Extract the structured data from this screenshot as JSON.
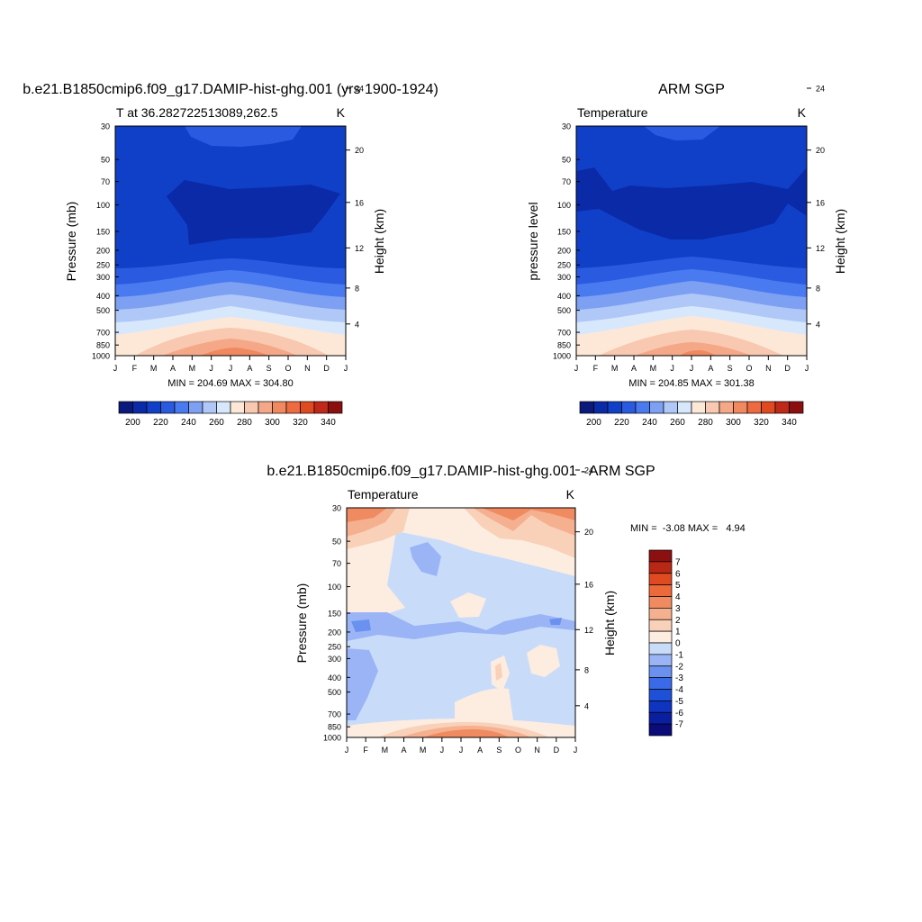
{
  "figure": {
    "months": [
      "J",
      "F",
      "M",
      "A",
      "M",
      "J",
      "J",
      "A",
      "S",
      "O",
      "N",
      "D",
      "J"
    ],
    "pressure_ticks": [
      30,
      50,
      70,
      100,
      150,
      200,
      250,
      300,
      400,
      500,
      700,
      850,
      1000
    ],
    "height_ticks": [
      4,
      8,
      12,
      16,
      20,
      24
    ]
  },
  "chart_data": [
    {
      "type": "heatmap",
      "title": "b.e21.B1850cmip6.f09_g17.DAMIP-hist-ghg.001 (yrs 1900-1924)",
      "left_string": "T at 36.282722513089,262.5",
      "units": "K",
      "xlabel": "",
      "ylabel": "Pressure (mb)",
      "ylabel_right": "Height (km)",
      "stats": "MIN = 204.69 MAX = 304.80",
      "min": 204.69,
      "max": 304.8,
      "colorbar_labels": [
        "200",
        "220",
        "240",
        "260",
        "280",
        "300",
        "320",
        "340"
      ],
      "colorbar_levels": [
        190,
        200,
        210,
        220,
        230,
        240,
        250,
        260,
        270,
        280,
        290,
        300,
        310,
        320,
        330,
        340,
        350
      ]
    },
    {
      "type": "heatmap",
      "title": "ARM SGP",
      "left_string": "Temperature",
      "units": "K",
      "xlabel": "",
      "ylabel": "pressure level",
      "ylabel_right": "Height (km)",
      "stats": "MIN = 204.85 MAX = 301.38",
      "min": 204.85,
      "max": 301.38,
      "colorbar_labels": [
        "200",
        "220",
        "240",
        "260",
        "280",
        "300",
        "320",
        "340"
      ],
      "colorbar_levels": [
        190,
        200,
        210,
        220,
        230,
        240,
        250,
        260,
        270,
        280,
        290,
        300,
        310,
        320,
        330,
        340,
        350
      ]
    },
    {
      "type": "heatmap",
      "title": "b.e21.B1850cmip6.f09_g17.DAMIP-hist-ghg.001 - ARM SGP",
      "left_string": "Temperature",
      "units": "K",
      "xlabel": "",
      "ylabel": "Pressure (mb)",
      "ylabel_right": "Height (km)",
      "stats": "MIN =  -3.08 MAX =   4.94",
      "min": -3.08,
      "max": 4.94,
      "colorbar_labels": [
        "7",
        "6",
        "5",
        "4",
        "3",
        "2",
        "1",
        "0",
        "-1",
        "-2",
        "-3",
        "-4",
        "-5",
        "-6",
        "-7"
      ]
    }
  ],
  "colors": {
    "abs_scale": [
      "#0b1a7a",
      "#0a2aa8",
      "#1040c8",
      "#2a5ae0",
      "#4a7af0",
      "#7ea0f2",
      "#b0c8f8",
      "#d8e8fc",
      "#fde8d8",
      "#f8c8b0",
      "#f5a888",
      "#f08860",
      "#ee6a40",
      "#e04a20",
      "#c02818",
      "#8c0f0f"
    ],
    "diff_scale": [
      "#0b0b7a",
      "#0a1ea0",
      "#0e34c0",
      "#1e50d8",
      "#3a6ae8",
      "#6a90f0",
      "#9ab4f6",
      "#c8dcfa",
      "#fdece0",
      "#f9d0b8",
      "#f5b090",
      "#f08a60",
      "#ec6a3a",
      "#e04a20",
      "#b82814",
      "#8c1010"
    ]
  }
}
